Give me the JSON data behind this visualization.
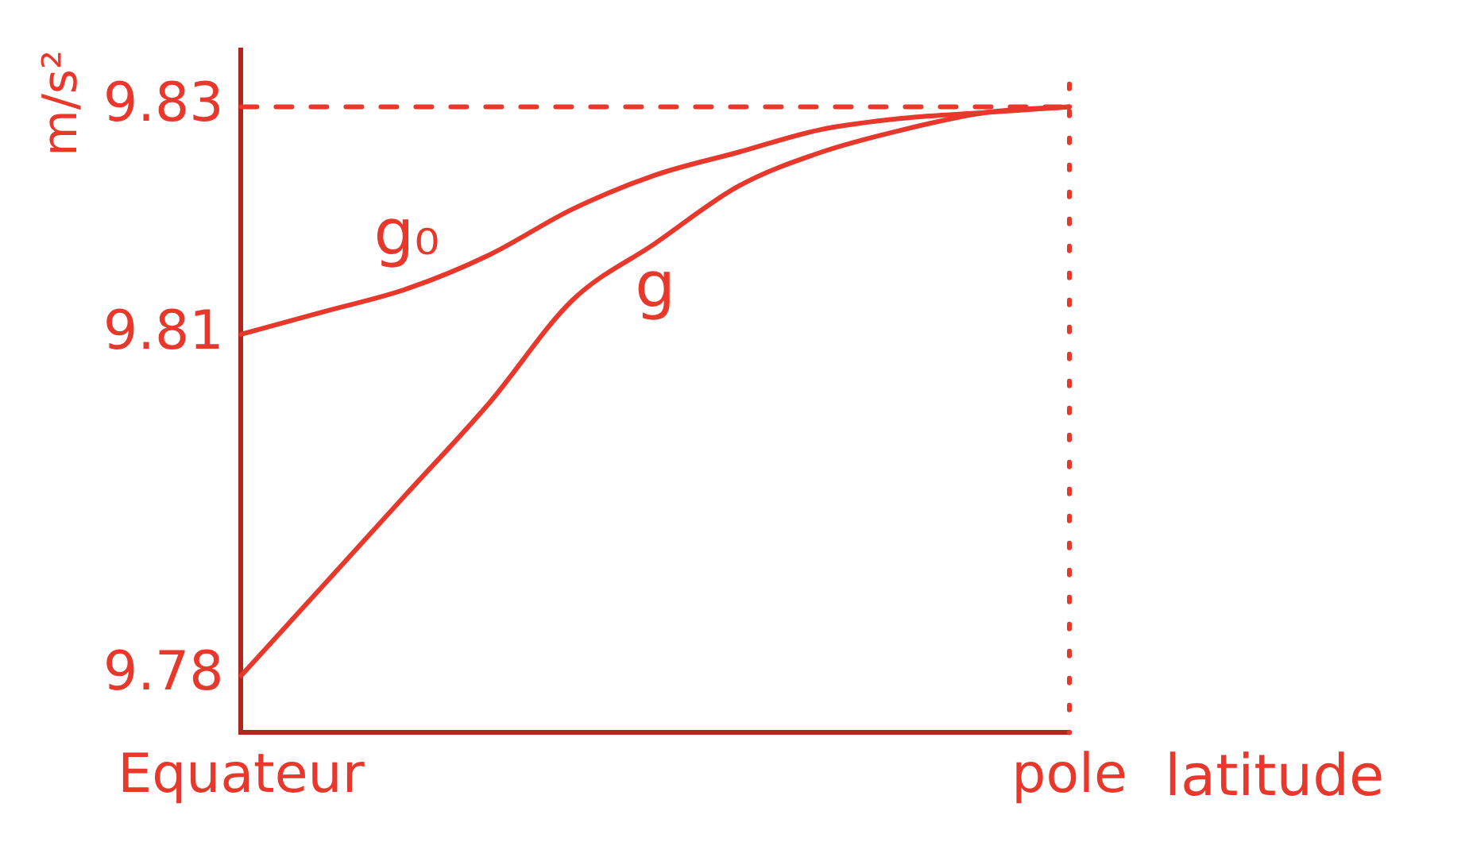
{
  "chart_data": {
    "type": "line",
    "xlabel": "latitude",
    "ylabel": "m/s²",
    "categories": [
      "Equateur",
      null,
      null,
      null,
      null,
      null,
      null,
      null,
      null,
      null,
      "pole"
    ],
    "series": [
      {
        "name": "g₀",
        "color": "#e8372b",
        "values": [
          9.81,
          9.812,
          9.814,
          9.817,
          9.821,
          9.824,
          9.826,
          9.828,
          9.829,
          9.8295,
          9.83
        ]
      },
      {
        "name": "g",
        "color": "#e8372b",
        "values": [
          9.78,
          9.788,
          9.796,
          9.804,
          9.813,
          9.818,
          9.823,
          9.826,
          9.828,
          9.8295,
          9.83
        ]
      }
    ],
    "ylim": [
      9.775,
      9.835
    ],
    "yticks": [
      9.78,
      9.81,
      9.83
    ],
    "ref_lines": [
      {
        "axis": "y",
        "value": 9.83,
        "line_style": "dashed",
        "color": "#e8372b"
      },
      {
        "axis": "x",
        "value": "pole",
        "line_style": "dotted",
        "color": "#e8372b"
      }
    ],
    "grid": false,
    "legend": false,
    "marker": "none",
    "line_style": "solid"
  }
}
